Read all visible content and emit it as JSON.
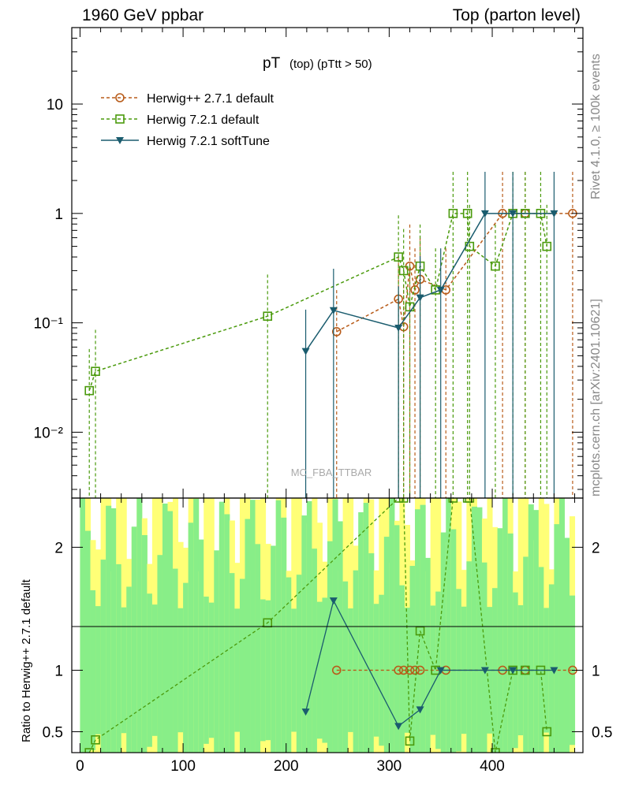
{
  "header": {
    "left": "1960 GeV ppbar",
    "right": "Top (parton level)"
  },
  "side": {
    "rivet": "Rivet 4.1.0, ≥ 100k events",
    "mcplots": "mcplots.cern.ch [arXiv:2401.10621]"
  },
  "chart_data": {
    "type": "line",
    "title_main": "pT",
    "title_sub": "(top) (pTtt > 50)",
    "watermark": "MC_FBA_TTBAR",
    "xlabel": "",
    "ylabel_ratio": "Ratio to Herwig++ 2.7.1 default",
    "xlim": [
      -8,
      488
    ],
    "ylim": [
      0.0025,
      50
    ],
    "yscale": "log",
    "ratio_ylim": [
      0.33,
      2.4
    ],
    "x_ticks": [
      "0",
      "100",
      "200",
      "300",
      "400"
    ],
    "x_tick_values": [
      0,
      100,
      200,
      300,
      400
    ],
    "y_ticks_main": [
      "10",
      "1",
      "10⁻¹",
      "10⁻²"
    ],
    "y_tick_values_main": [
      10,
      1,
      0.1,
      0.01
    ],
    "y_ticks_ratio": [
      "2",
      "1",
      "0.5"
    ],
    "y_tick_values_ratio": [
      2,
      1,
      0.5
    ],
    "series": [
      {
        "name": "Herwig++ 2.7.1 default",
        "color": "#b85c1a",
        "marker": "circle",
        "dash": "4,3",
        "points": [
          [
            249,
            0.083
          ],
          [
            309,
            0.165
          ],
          [
            314,
            0.092
          ],
          [
            320,
            0.33
          ],
          [
            325,
            0.2
          ],
          [
            330,
            0.25
          ],
          [
            355,
            0.2
          ],
          [
            410,
            1.0
          ],
          [
            432,
            1.0
          ],
          [
            478,
            1.0
          ]
        ]
      },
      {
        "name": "Herwig 7.2.1 default",
        "color": "#4a9a0c",
        "marker": "square",
        "dash": "4,3",
        "points": [
          [
            9,
            0.024
          ],
          [
            15,
            0.036
          ],
          [
            182,
            0.115
          ],
          [
            309,
            0.4
          ],
          [
            314,
            0.3
          ],
          [
            320,
            0.14
          ],
          [
            330,
            0.33
          ],
          [
            345,
            0.2
          ],
          [
            362,
            1.0
          ],
          [
            376,
            1.0
          ],
          [
            378,
            0.5
          ],
          [
            403,
            0.33
          ],
          [
            420,
            1.0
          ],
          [
            432,
            1.0
          ],
          [
            447,
            1.0
          ],
          [
            453,
            0.5
          ]
        ]
      },
      {
        "name": "Herwig 7.2.1 softTune",
        "color": "#1a5c6e",
        "marker": "triangle-down",
        "dash": "",
        "points": [
          [
            219,
            0.055
          ],
          [
            246,
            0.13
          ],
          [
            309,
            0.09
          ],
          [
            330,
            0.17
          ],
          [
            350,
            0.2
          ],
          [
            393,
            1.0
          ],
          [
            420,
            1.0
          ],
          [
            460,
            1.0
          ]
        ]
      }
    ]
  }
}
